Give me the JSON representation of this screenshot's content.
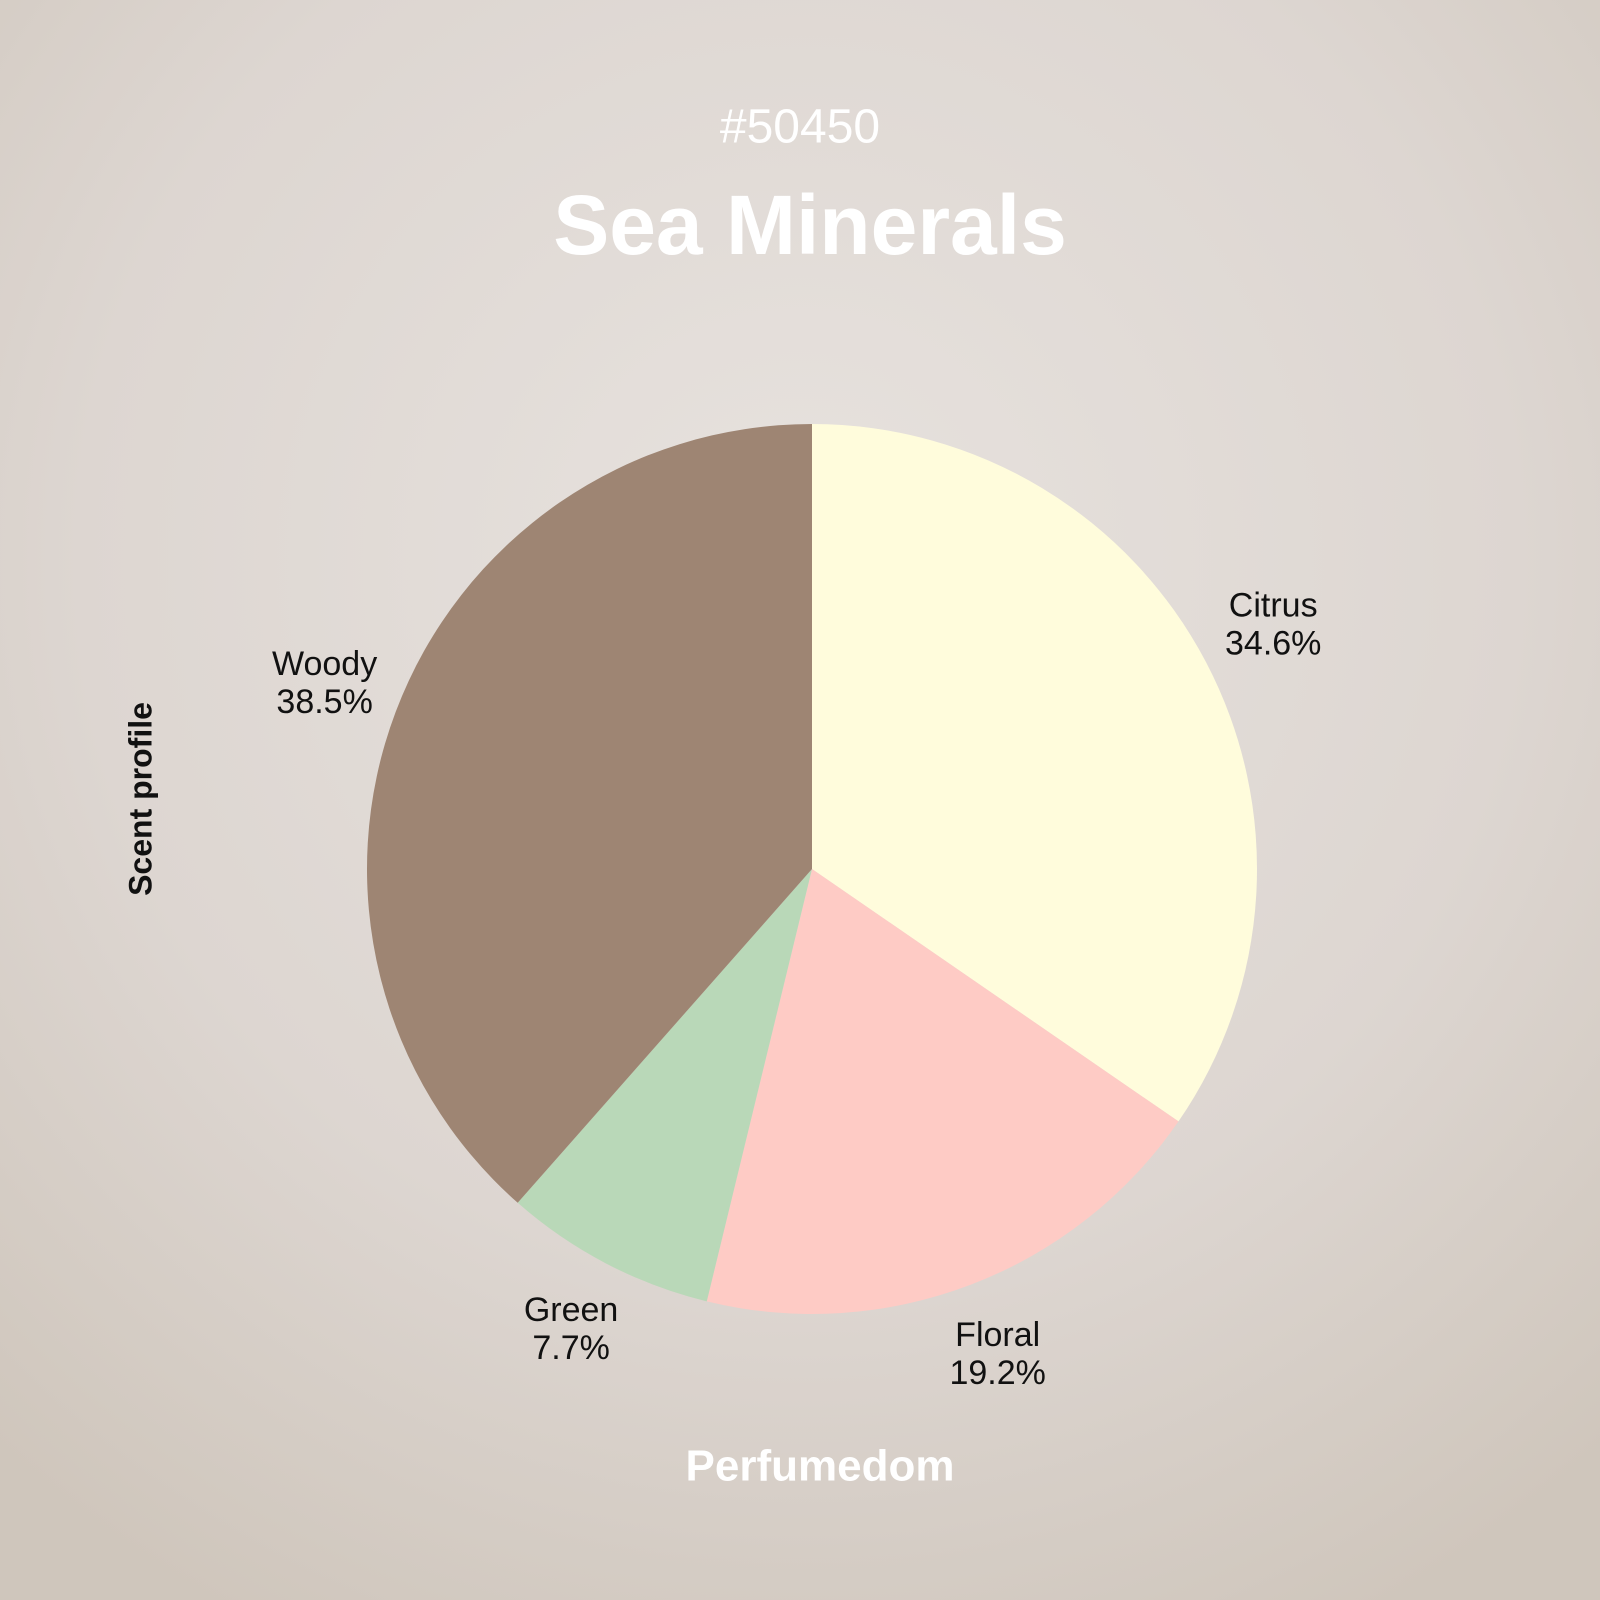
{
  "chart_data": {
    "type": "pie",
    "subtitle": "#50450",
    "title": "Sea Minerals",
    "ylabel": "Scent profile",
    "footer": "Perfumedom",
    "categories": [
      "Citrus",
      "Floral",
      "Green",
      "Woody"
    ],
    "values": [
      34.6,
      19.2,
      7.7,
      38.5
    ],
    "value_labels": [
      "34.6%",
      "19.2%",
      "7.7%",
      "38.5%"
    ],
    "colors": [
      "#fffcdc",
      "#fecbc5",
      "#b9d8b8",
      "#9e8573"
    ]
  }
}
